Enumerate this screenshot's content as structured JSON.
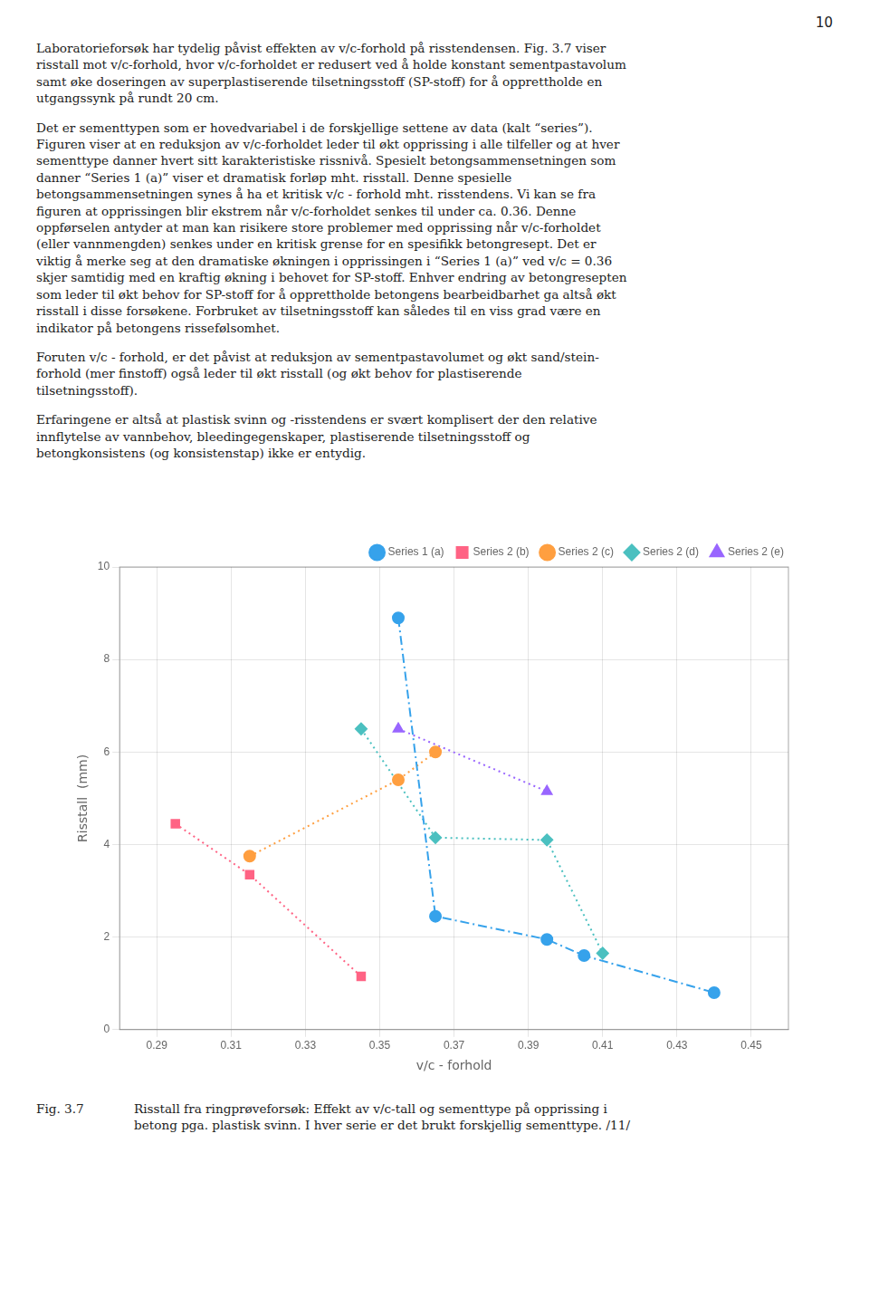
{
  "chart_data": {
    "type": "line",
    "x_label": "v/c - forhold",
    "y_label": "Risstall  (mm)",
    "series": [
      {
        "name": "Series 1 (a)",
        "x": [
          0.355,
          0.365,
          0.395,
          0.405,
          0.44
        ],
        "values": [
          8.9,
          2.45,
          1.95,
          1.6,
          0.8
        ],
        "marker": "circle",
        "line_style": "dashdot"
      },
      {
        "name": "Series 2 (b)",
        "x": [
          0.295,
          0.315,
          0.345
        ],
        "values": [
          4.45,
          3.35,
          1.15
        ],
        "marker": "square",
        "line_style": "dotted"
      },
      {
        "name": "Series 2 (c)",
        "x": [
          0.315,
          0.355,
          0.365
        ],
        "values": [
          3.75,
          5.4,
          6.0
        ],
        "marker": "circle",
        "line_style": "dotted"
      },
      {
        "name": "Series 2 (d)",
        "x": [
          0.345,
          0.365,
          0.395,
          0.41
        ],
        "values": [
          6.5,
          4.15,
          4.1,
          1.65
        ],
        "marker": "diamond",
        "line_style": "dotted"
      },
      {
        "name": "Series 2 (e)",
        "x": [
          0.355,
          0.395
        ],
        "values": [
          6.5,
          5.15
        ],
        "marker": "triangle",
        "line_style": "dotted"
      }
    ],
    "xlim": [
      0.28,
      0.46
    ],
    "xticks": [
      0.29,
      0.31,
      0.33,
      0.35,
      0.37,
      0.39,
      0.41,
      0.43,
      0.45
    ],
    "ylim": [
      0,
      10
    ],
    "yticks": [
      0,
      2,
      4,
      6,
      8,
      10
    ],
    "grid": true,
    "legend": "upper right",
    "annotations": {
      "page_number": "10",
      "paragraphs": [
        [
          "Laboratorieforsøk har tydelig påvist effekten av v/c-forhold på risstendensen. Fig. 3.7 viser",
          "risstall mot v/c-forhold, hvor v/c-forholdet er redusert ved å holde konstant sementpastavolum",
          "samt øke doseringen av superplastiserende tilsetningsstoff (SP-stoff) for å opprettholde en",
          "utgangssynk på rundt 20 cm."
        ],
        [
          "Det er sementtypen som er hovedvariabel i de forskjellige settene av data (kalt “series”).",
          "Figuren viser at en reduksjon av v/c-forholdet leder til økt opprissing i alle tilfeller og at hver",
          "sementtype danner hvert sitt karakteristiske rissnivå. Spesielt betongsammensetningen som",
          "danner “Series 1 (a)” viser et dramatisk forløp mht. risstall. Denne spesielle",
          "betongsammensetningen synes å ha et kritisk v/c - forhold mht. risstendens. Vi kan se fra",
          "figuren at opprissingen blir ekstrem når v/c-forholdet senkes til under ca. 0.36. Denne",
          "oppførselen antyder at man kan risikere store problemer med opprissing når v/c-forholdet",
          "(eller vannmengden) senkes under en kritisk grense for en spesifikk betongresept. Det er",
          "viktig å merke seg at den dramatiske økningen i opprissingen i “Series 1 (a)” ved v/c = 0.36",
          "skjer samtidig med en kraftig økning i behovet for SP-stoff. Enhver endring av betongresepten",
          "som leder til økt behov for SP-stoff for å opprettholde betongens bearbeidbarhet ga altså økt",
          "risstall i disse forsøkene. Forbruket av tilsetningsstoff kan således til en viss grad være en",
          "indikator på betongens rissefølsomhet."
        ],
        [
          "Foruten v/c - forhold, er det påvist at reduksjon av sementpastavolumet og økt sand/stein-",
          "forhold (mer finstoff) også leder til økt risstall (og økt behov for plastiserende",
          "tilsetningsstoff)."
        ],
        [
          "Erfaringene er altså at plastisk svinn og -risstendens er svært komplisert der den relative",
          "innflytelse av vannbehov, bleedingegenskaper, plastiserende tilsetningsstoff og",
          "betongkonsistens (og konsistenstap) ikke er entydig."
        ]
      ],
      "caption": [
        "Fig. 3.7",
        "Risstall fra ringprøveforsøk: Effekt av v/c-tall og sementtype på opprissing i",
        "betong pga. plastisk svinn. I hver serie er det brukt forskjellig sementtype. /11/"
      ]
    }
  }
}
